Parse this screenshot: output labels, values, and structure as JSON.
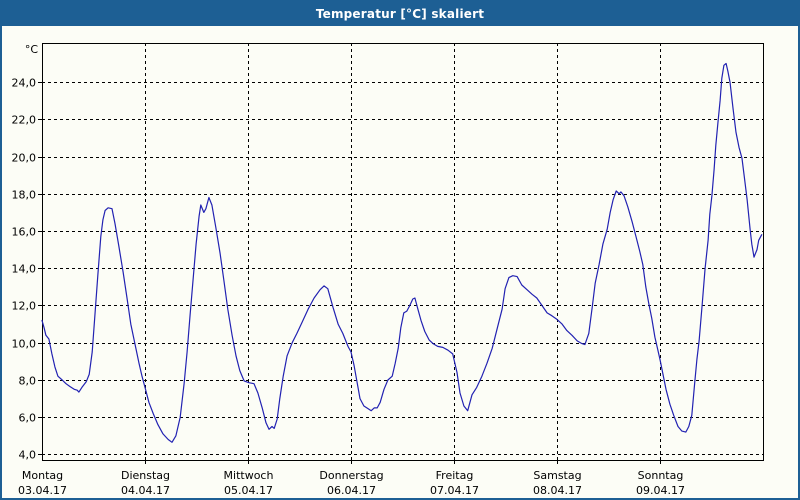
{
  "window": {
    "title": "Temperatur [°C] skaliert"
  },
  "colors": {
    "titlebar": "#1d5f94",
    "frame": "#1d5f94",
    "background": "#fcfdf6",
    "line": "#2222b2",
    "grid": "#000000",
    "text": "#000000"
  },
  "chart_data": {
    "type": "line",
    "title": "Temperatur [°C] skaliert",
    "unit_label": "°C",
    "grid": "dashed",
    "legend": "none",
    "ylim": [
      3.7,
      26.1
    ],
    "ylabel": "",
    "xlabel": "",
    "y_ticks": [
      {
        "value": 4,
        "label": "4,0"
      },
      {
        "value": 6,
        "label": "6,0"
      },
      {
        "value": 8,
        "label": "8,0"
      },
      {
        "value": 10,
        "label": "10,0"
      },
      {
        "value": 12,
        "label": "12,0"
      },
      {
        "value": 14,
        "label": "14,0"
      },
      {
        "value": 16,
        "label": "16,0"
      },
      {
        "value": 18,
        "label": "18,0"
      },
      {
        "value": 20,
        "label": "20,0"
      },
      {
        "value": 22,
        "label": "22,0"
      },
      {
        "value": 24,
        "label": "24,0"
      }
    ],
    "x_axis_days": [
      {
        "weekday": "Montag",
        "date": "03.04.17"
      },
      {
        "weekday": "Dienstag",
        "date": "04.04.17"
      },
      {
        "weekday": "Mittwoch",
        "date": "05.04.17"
      },
      {
        "weekday": "Donnerstag",
        "date": "06.04.17"
      },
      {
        "weekday": "Freitag",
        "date": "07.04.17"
      },
      {
        "weekday": "Samstag",
        "date": "08.04.17"
      },
      {
        "weekday": "Sonntag",
        "date": "09.04.17"
      }
    ],
    "x_unit": "hours_since_monday_00:00",
    "x_range": [
      0,
      168
    ],
    "series": [
      {
        "name": "Temperatur [°C]",
        "color": "#2222b2",
        "points": [
          [
            0.0,
            11.2
          ],
          [
            0.5,
            10.8
          ],
          [
            0.9,
            10.4
          ],
          [
            1.6,
            10.2
          ],
          [
            2.3,
            9.4
          ],
          [
            3.0,
            8.7
          ],
          [
            3.7,
            8.2
          ],
          [
            4.7,
            8.0
          ],
          [
            5.6,
            7.8
          ],
          [
            6.5,
            7.65
          ],
          [
            7.5,
            7.5
          ],
          [
            8.2,
            7.45
          ],
          [
            8.6,
            7.35
          ],
          [
            9.3,
            7.6
          ],
          [
            10.3,
            7.9
          ],
          [
            11.0,
            8.3
          ],
          [
            11.7,
            9.5
          ],
          [
            12.3,
            11.4
          ],
          [
            13.0,
            13.6
          ],
          [
            13.7,
            15.7
          ],
          [
            14.2,
            16.6
          ],
          [
            14.7,
            17.1
          ],
          [
            15.4,
            17.25
          ],
          [
            16.3,
            17.2
          ],
          [
            17.0,
            16.4
          ],
          [
            17.9,
            15.2
          ],
          [
            18.9,
            13.8
          ],
          [
            19.8,
            12.4
          ],
          [
            20.7,
            11.0
          ],
          [
            21.7,
            9.9
          ],
          [
            22.6,
            8.9
          ],
          [
            23.3,
            8.2
          ],
          [
            24.0,
            7.6
          ],
          [
            24.9,
            6.8
          ],
          [
            25.9,
            6.2
          ],
          [
            27.0,
            5.6
          ],
          [
            28.2,
            5.1
          ],
          [
            29.4,
            4.8
          ],
          [
            30.3,
            4.65
          ],
          [
            31.2,
            5.0
          ],
          [
            32.2,
            6.0
          ],
          [
            33.1,
            7.8
          ],
          [
            33.8,
            9.5
          ],
          [
            34.5,
            11.5
          ],
          [
            35.2,
            13.4
          ],
          [
            35.9,
            15.3
          ],
          [
            36.6,
            16.8
          ],
          [
            37.0,
            17.4
          ],
          [
            37.7,
            17.0
          ],
          [
            38.2,
            17.2
          ],
          [
            38.9,
            17.8
          ],
          [
            39.6,
            17.4
          ],
          [
            40.5,
            16.2
          ],
          [
            41.5,
            14.8
          ],
          [
            42.4,
            13.3
          ],
          [
            43.3,
            11.8
          ],
          [
            44.3,
            10.4
          ],
          [
            45.2,
            9.3
          ],
          [
            46.1,
            8.5
          ],
          [
            47.1,
            7.95
          ],
          [
            48.2,
            7.85
          ],
          [
            49.4,
            7.8
          ],
          [
            50.3,
            7.3
          ],
          [
            51.3,
            6.5
          ],
          [
            52.2,
            5.7
          ],
          [
            52.9,
            5.35
          ],
          [
            53.6,
            5.5
          ],
          [
            54.1,
            5.4
          ],
          [
            54.8,
            5.9
          ],
          [
            55.4,
            7.0
          ],
          [
            56.2,
            8.2
          ],
          [
            57.1,
            9.3
          ],
          [
            58.3,
            10.0
          ],
          [
            59.4,
            10.5
          ],
          [
            60.6,
            11.1
          ],
          [
            62.0,
            11.8
          ],
          [
            63.4,
            12.4
          ],
          [
            64.8,
            12.85
          ],
          [
            65.7,
            13.05
          ],
          [
            66.6,
            12.9
          ],
          [
            67.8,
            11.9
          ],
          [
            69.0,
            11.0
          ],
          [
            70.1,
            10.5
          ],
          [
            71.3,
            9.8
          ],
          [
            72.0,
            9.5
          ],
          [
            72.7,
            8.8
          ],
          [
            73.4,
            7.9
          ],
          [
            74.1,
            7.0
          ],
          [
            75.0,
            6.6
          ],
          [
            76.0,
            6.45
          ],
          [
            76.7,
            6.35
          ],
          [
            77.4,
            6.5
          ],
          [
            78.1,
            6.5
          ],
          [
            78.8,
            6.8
          ],
          [
            79.7,
            7.5
          ],
          [
            80.6,
            8.0
          ],
          [
            81.6,
            8.2
          ],
          [
            82.3,
            8.9
          ],
          [
            83.0,
            9.7
          ],
          [
            83.6,
            10.8
          ],
          [
            84.3,
            11.6
          ],
          [
            85.0,
            11.7
          ],
          [
            85.7,
            12.0
          ],
          [
            86.4,
            12.35
          ],
          [
            86.9,
            12.4
          ],
          [
            87.6,
            11.8
          ],
          [
            88.3,
            11.2
          ],
          [
            89.2,
            10.6
          ],
          [
            90.2,
            10.15
          ],
          [
            91.1,
            9.95
          ],
          [
            92.2,
            9.8
          ],
          [
            93.4,
            9.75
          ],
          [
            94.6,
            9.6
          ],
          [
            95.7,
            9.4
          ],
          [
            96.7,
            8.4
          ],
          [
            97.4,
            7.3
          ],
          [
            98.3,
            6.6
          ],
          [
            99.2,
            6.35
          ],
          [
            100.2,
            7.2
          ],
          [
            101.3,
            7.6
          ],
          [
            102.5,
            8.2
          ],
          [
            103.7,
            8.9
          ],
          [
            104.9,
            9.7
          ],
          [
            106.0,
            10.7
          ],
          [
            107.2,
            11.8
          ],
          [
            107.9,
            12.9
          ],
          [
            108.8,
            13.5
          ],
          [
            109.7,
            13.6
          ],
          [
            110.7,
            13.55
          ],
          [
            111.8,
            13.1
          ],
          [
            113.0,
            12.85
          ],
          [
            114.2,
            12.6
          ],
          [
            115.3,
            12.4
          ],
          [
            116.5,
            12.0
          ],
          [
            117.7,
            11.6
          ],
          [
            118.8,
            11.45
          ],
          [
            120.0,
            11.25
          ],
          [
            121.2,
            11.0
          ],
          [
            122.3,
            10.65
          ],
          [
            123.5,
            10.4
          ],
          [
            124.7,
            10.1
          ],
          [
            125.8,
            9.95
          ],
          [
            126.5,
            9.9
          ],
          [
            127.4,
            10.5
          ],
          [
            128.2,
            11.9
          ],
          [
            128.9,
            13.2
          ],
          [
            129.8,
            14.2
          ],
          [
            130.7,
            15.3
          ],
          [
            131.7,
            16.1
          ],
          [
            132.4,
            17.0
          ],
          [
            133.1,
            17.7
          ],
          [
            133.8,
            18.15
          ],
          [
            134.5,
            18.0
          ],
          [
            134.9,
            18.1
          ],
          [
            135.6,
            17.9
          ],
          [
            136.5,
            17.3
          ],
          [
            137.5,
            16.5
          ],
          [
            138.4,
            15.7
          ],
          [
            139.3,
            14.9
          ],
          [
            140.0,
            14.2
          ],
          [
            140.7,
            13.0
          ],
          [
            141.4,
            12.1
          ],
          [
            142.1,
            11.3
          ],
          [
            142.8,
            10.3
          ],
          [
            143.5,
            9.6
          ],
          [
            144.0,
            9.1
          ],
          [
            144.7,
            8.3
          ],
          [
            145.4,
            7.5
          ],
          [
            146.3,
            6.7
          ],
          [
            147.2,
            6.1
          ],
          [
            148.2,
            5.5
          ],
          [
            149.1,
            5.25
          ],
          [
            150.0,
            5.2
          ],
          [
            150.7,
            5.5
          ],
          [
            151.4,
            6.1
          ],
          [
            152.1,
            7.9
          ],
          [
            152.6,
            9.1
          ],
          [
            153.1,
            10.1
          ],
          [
            153.8,
            12.0
          ],
          [
            154.5,
            14.0
          ],
          [
            155.2,
            15.5
          ],
          [
            155.6,
            16.9
          ],
          [
            156.1,
            17.9
          ],
          [
            156.6,
            19.3
          ],
          [
            157.0,
            20.6
          ],
          [
            157.5,
            21.8
          ],
          [
            158.0,
            23.0
          ],
          [
            158.4,
            24.2
          ],
          [
            158.9,
            24.9
          ],
          [
            159.4,
            25.0
          ],
          [
            159.8,
            24.6
          ],
          [
            160.3,
            24.0
          ],
          [
            161.0,
            22.6
          ],
          [
            161.7,
            21.3
          ],
          [
            162.4,
            20.5
          ],
          [
            163.1,
            19.9
          ],
          [
            163.6,
            19.0
          ],
          [
            164.3,
            17.7
          ],
          [
            165.0,
            16.1
          ],
          [
            165.4,
            15.3
          ],
          [
            165.9,
            14.6
          ],
          [
            166.6,
            15.0
          ],
          [
            167.0,
            15.5
          ],
          [
            167.7,
            15.8
          ]
        ]
      }
    ]
  }
}
